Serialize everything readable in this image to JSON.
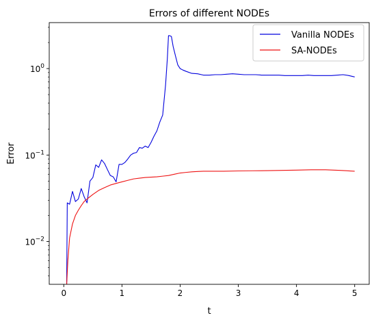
{
  "chart_data": {
    "type": "line",
    "title": "Errors of different NODEs",
    "xlabel": "t",
    "ylabel": "Error",
    "xlim": [
      -0.25,
      5.25
    ],
    "ylim": [
      0.0032,
      3.4
    ],
    "yscale": "log",
    "grid": false,
    "legend_position": "top-right",
    "x_ticks": [
      {
        "value": 0,
        "label": "0"
      },
      {
        "value": 1,
        "label": "1"
      },
      {
        "value": 2,
        "label": "2"
      },
      {
        "value": 3,
        "label": "3"
      },
      {
        "value": 4,
        "label": "4"
      },
      {
        "value": 5,
        "label": "5"
      }
    ],
    "y_ticks": [
      {
        "value": 0.01,
        "base": "10",
        "exp": "−2"
      },
      {
        "value": 0.1,
        "base": "10",
        "exp": "−1"
      },
      {
        "value": 1,
        "base": "10",
        "exp": "0"
      }
    ],
    "series": [
      {
        "name": "Vanilla NODEs",
        "color": "#0000dd",
        "x": [
          0.04,
          0.05,
          0.06,
          0.1,
          0.15,
          0.2,
          0.25,
          0.3,
          0.35,
          0.4,
          0.45,
          0.5,
          0.55,
          0.6,
          0.65,
          0.7,
          0.75,
          0.8,
          0.85,
          0.9,
          0.95,
          1.0,
          1.05,
          1.1,
          1.15,
          1.2,
          1.25,
          1.3,
          1.35,
          1.4,
          1.45,
          1.5,
          1.55,
          1.6,
          1.65,
          1.7,
          1.75,
          1.78,
          1.8,
          1.82,
          1.85,
          1.88,
          1.92,
          1.96,
          2.0,
          2.05,
          2.1,
          2.2,
          2.3,
          2.4,
          2.5,
          2.6,
          2.7,
          2.8,
          2.9,
          3.0,
          3.1,
          3.2,
          3.3,
          3.4,
          3.5,
          3.6,
          3.7,
          3.8,
          3.9,
          4.0,
          4.1,
          4.2,
          4.3,
          4.4,
          4.5,
          4.6,
          4.7,
          4.8,
          4.9,
          5.0
        ],
        "values": [
          0.0032,
          0.0032,
          0.028,
          0.027,
          0.038,
          0.029,
          0.031,
          0.041,
          0.033,
          0.028,
          0.05,
          0.055,
          0.077,
          0.072,
          0.088,
          0.08,
          0.068,
          0.058,
          0.056,
          0.049,
          0.078,
          0.078,
          0.082,
          0.09,
          0.1,
          0.105,
          0.107,
          0.122,
          0.12,
          0.127,
          0.122,
          0.14,
          0.165,
          0.19,
          0.24,
          0.29,
          0.65,
          1.3,
          2.4,
          2.4,
          2.35,
          1.8,
          1.4,
          1.1,
          1.0,
          0.96,
          0.93,
          0.88,
          0.87,
          0.84,
          0.84,
          0.85,
          0.85,
          0.86,
          0.87,
          0.86,
          0.85,
          0.85,
          0.85,
          0.84,
          0.84,
          0.84,
          0.84,
          0.83,
          0.83,
          0.83,
          0.83,
          0.84,
          0.83,
          0.83,
          0.83,
          0.83,
          0.84,
          0.85,
          0.83,
          0.8
        ]
      },
      {
        "name": "SA-NODEs",
        "color": "#ee1111",
        "x": [
          0.05,
          0.07,
          0.1,
          0.15,
          0.2,
          0.25,
          0.3,
          0.35,
          0.4,
          0.5,
          0.6,
          0.7,
          0.8,
          0.9,
          1.0,
          1.1,
          1.2,
          1.3,
          1.4,
          1.5,
          1.6,
          1.7,
          1.8,
          1.9,
          2.0,
          2.1,
          2.2,
          2.3,
          2.4,
          2.5,
          2.75,
          3.0,
          3.25,
          3.5,
          3.75,
          4.0,
          4.25,
          4.5,
          4.75,
          5.0
        ],
        "values": [
          0.0032,
          0.006,
          0.011,
          0.016,
          0.02,
          0.023,
          0.026,
          0.029,
          0.031,
          0.035,
          0.039,
          0.042,
          0.045,
          0.047,
          0.049,
          0.051,
          0.053,
          0.054,
          0.055,
          0.0555,
          0.056,
          0.057,
          0.058,
          0.06,
          0.062,
          0.063,
          0.064,
          0.0645,
          0.065,
          0.065,
          0.065,
          0.0655,
          0.0658,
          0.066,
          0.0665,
          0.067,
          0.0675,
          0.0675,
          0.0665,
          0.065
        ]
      }
    ]
  }
}
